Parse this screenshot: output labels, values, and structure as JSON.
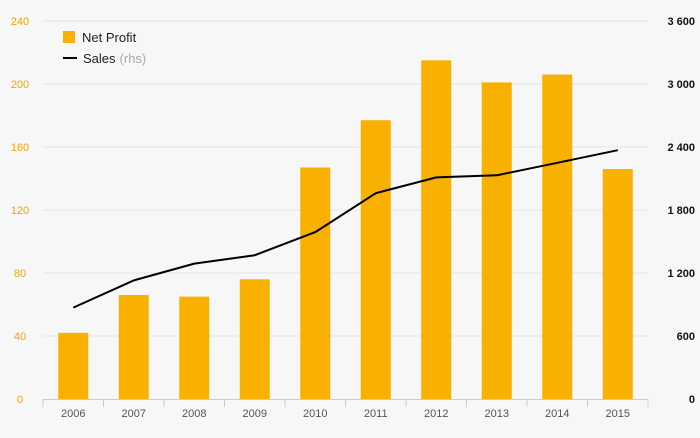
{
  "colors": {
    "bar": "#f8b100",
    "line": "#000000",
    "left_axis": "#f0a400",
    "right_axis": "#111111",
    "grid": "#e6e6e6",
    "x_axis": "#cccccc",
    "x_tick_text": "#555555"
  },
  "legend": {
    "bar_label": "Net Profit",
    "line_label": "Sales",
    "line_note": "(rhs)"
  },
  "chart_data": {
    "type": "bar",
    "categories": [
      "2006",
      "2007",
      "2008",
      "2009",
      "2010",
      "2011",
      "2012",
      "2013",
      "2014",
      "2015"
    ],
    "series": [
      {
        "name": "Net Profit",
        "type": "bar",
        "axis": "left",
        "values": [
          42,
          66,
          65,
          76,
          147,
          177,
          215,
          201,
          206,
          146
        ]
      },
      {
        "name": "Sales",
        "type": "line",
        "axis": "right",
        "values": [
          870,
          1130,
          1290,
          1370,
          1590,
          1960,
          2110,
          2130,
          2250,
          2370
        ]
      }
    ],
    "y_left": {
      "range": [
        0,
        240
      ],
      "ticks": [
        "0",
        "40",
        "80",
        "120",
        "160",
        "200",
        "240"
      ],
      "tick_values": [
        0,
        40,
        80,
        120,
        160,
        200,
        240
      ]
    },
    "y_right": {
      "range": [
        0,
        3600
      ],
      "ticks": [
        "0",
        "600",
        "1 200",
        "1 800",
        "2 400",
        "3 000",
        "3 600"
      ],
      "tick_values": [
        0,
        600,
        1200,
        1800,
        2400,
        3000,
        3600
      ]
    },
    "grid": true,
    "legend_position": "top-left"
  }
}
